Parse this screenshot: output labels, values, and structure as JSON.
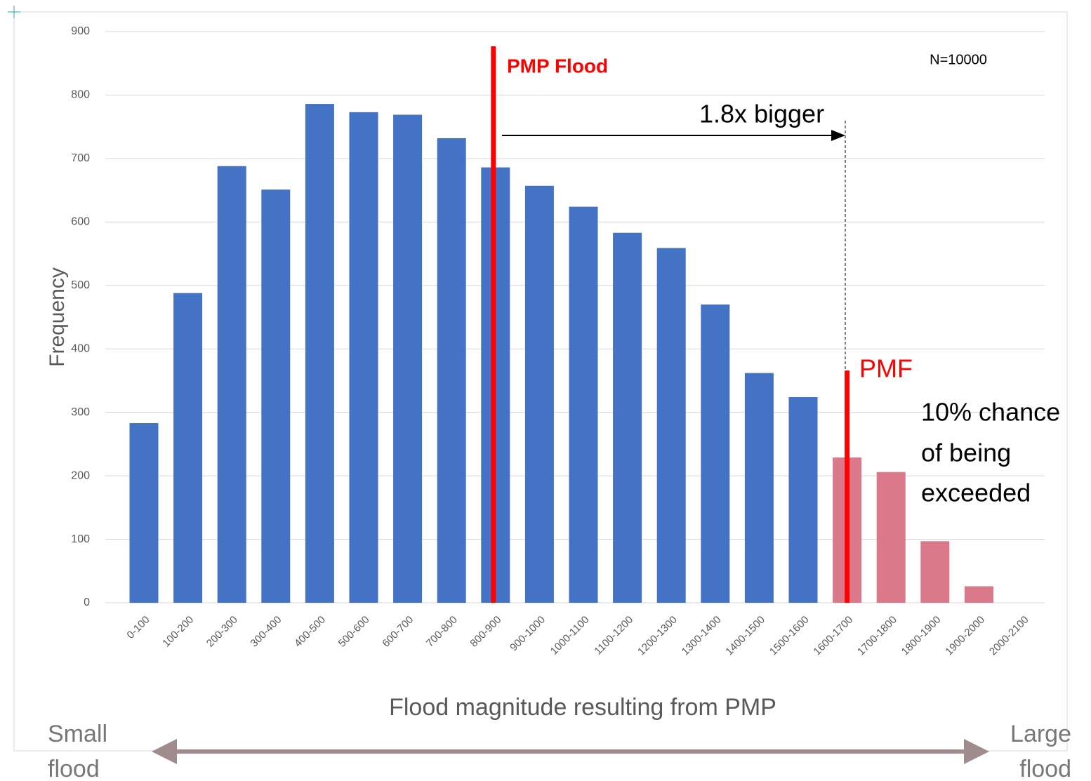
{
  "chart_data": {
    "type": "bar",
    "x_label": "Flood magnitude resulting from PMP",
    "y_label": "Frequency",
    "categories": [
      "0-100",
      "100-200",
      "200-300",
      "300-400",
      "400-500",
      "500-600",
      "600-700",
      "700-800",
      "800-900",
      "900-1000",
      "1000-1100",
      "1100-1200",
      "1200-1300",
      "1300-1400",
      "1400-1500",
      "1500-1600",
      "1600-1700",
      "1700-1800",
      "1800-1900",
      "1900-2000",
      "2000-2100"
    ],
    "values": [
      283,
      488,
      688,
      651,
      786,
      773,
      769,
      732,
      686,
      657,
      624,
      583,
      559,
      470,
      362,
      324,
      229,
      206,
      97,
      26,
      0
    ],
    "colors": [
      "#4472c4",
      "#4472c4",
      "#4472c4",
      "#4472c4",
      "#4472c4",
      "#4472c4",
      "#4472c4",
      "#4472c4",
      "#4472c4",
      "#4472c4",
      "#4472c4",
      "#4472c4",
      "#4472c4",
      "#4472c4",
      "#4472c4",
      "#4472c4",
      "#d9798a",
      "#d9798a",
      "#d9798a",
      "#d9798a",
      "#d9798a"
    ],
    "ylim": [
      0,
      900
    ],
    "yticks": [
      0,
      100,
      200,
      300,
      400,
      500,
      600,
      700,
      800,
      900
    ],
    "grid": true,
    "annotations": {
      "pmp_flood": "PMP Flood",
      "pmf": "PMF",
      "bigger": "1.8x bigger",
      "n": "N=10000",
      "chance": [
        "10% chance",
        "of being",
        "exceeded"
      ],
      "small": [
        "Small",
        "flood"
      ],
      "large": [
        "Large",
        "flood"
      ]
    }
  }
}
